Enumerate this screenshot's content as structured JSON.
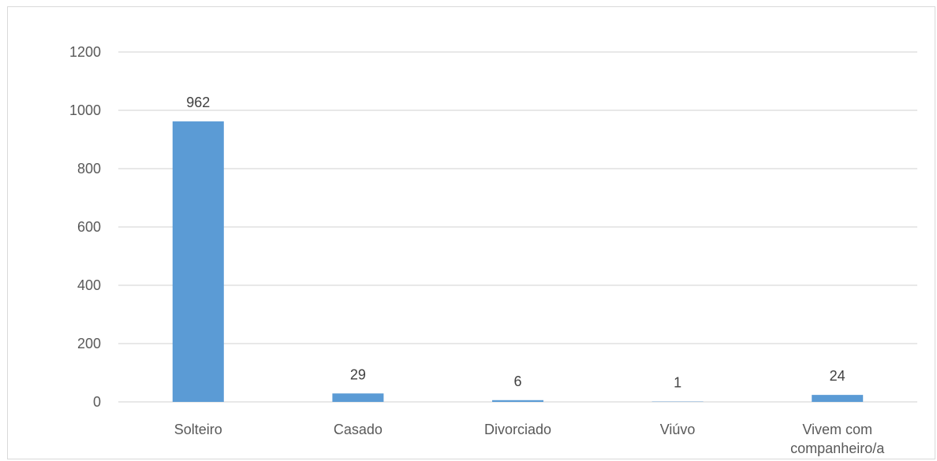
{
  "chart_data": {
    "type": "bar",
    "categories": [
      "Solteiro",
      "Casado",
      "Divorciado",
      "Viúvo",
      "Vivem com companheiro/a"
    ],
    "category_lines": [
      [
        "Solteiro"
      ],
      [
        "Casado"
      ],
      [
        "Divorciado"
      ],
      [
        "Viúvo"
      ],
      [
        "Vivem com",
        "companheiro/a"
      ]
    ],
    "values": [
      962,
      29,
      6,
      1,
      24
    ],
    "data_labels": [
      "962",
      "29",
      "6",
      "1",
      "24"
    ],
    "title": "",
    "xlabel": "",
    "ylabel": "",
    "ylim": [
      0,
      1200
    ],
    "yticks": [
      0,
      200,
      400,
      600,
      800,
      1000,
      1200
    ],
    "ytick_labels": [
      "0",
      "200",
      "400",
      "600",
      "800",
      "1000",
      "1200"
    ],
    "grid": true,
    "legend": "none",
    "bar_color": "#5b9bd5",
    "grid_color": "#d9d9d9"
  }
}
